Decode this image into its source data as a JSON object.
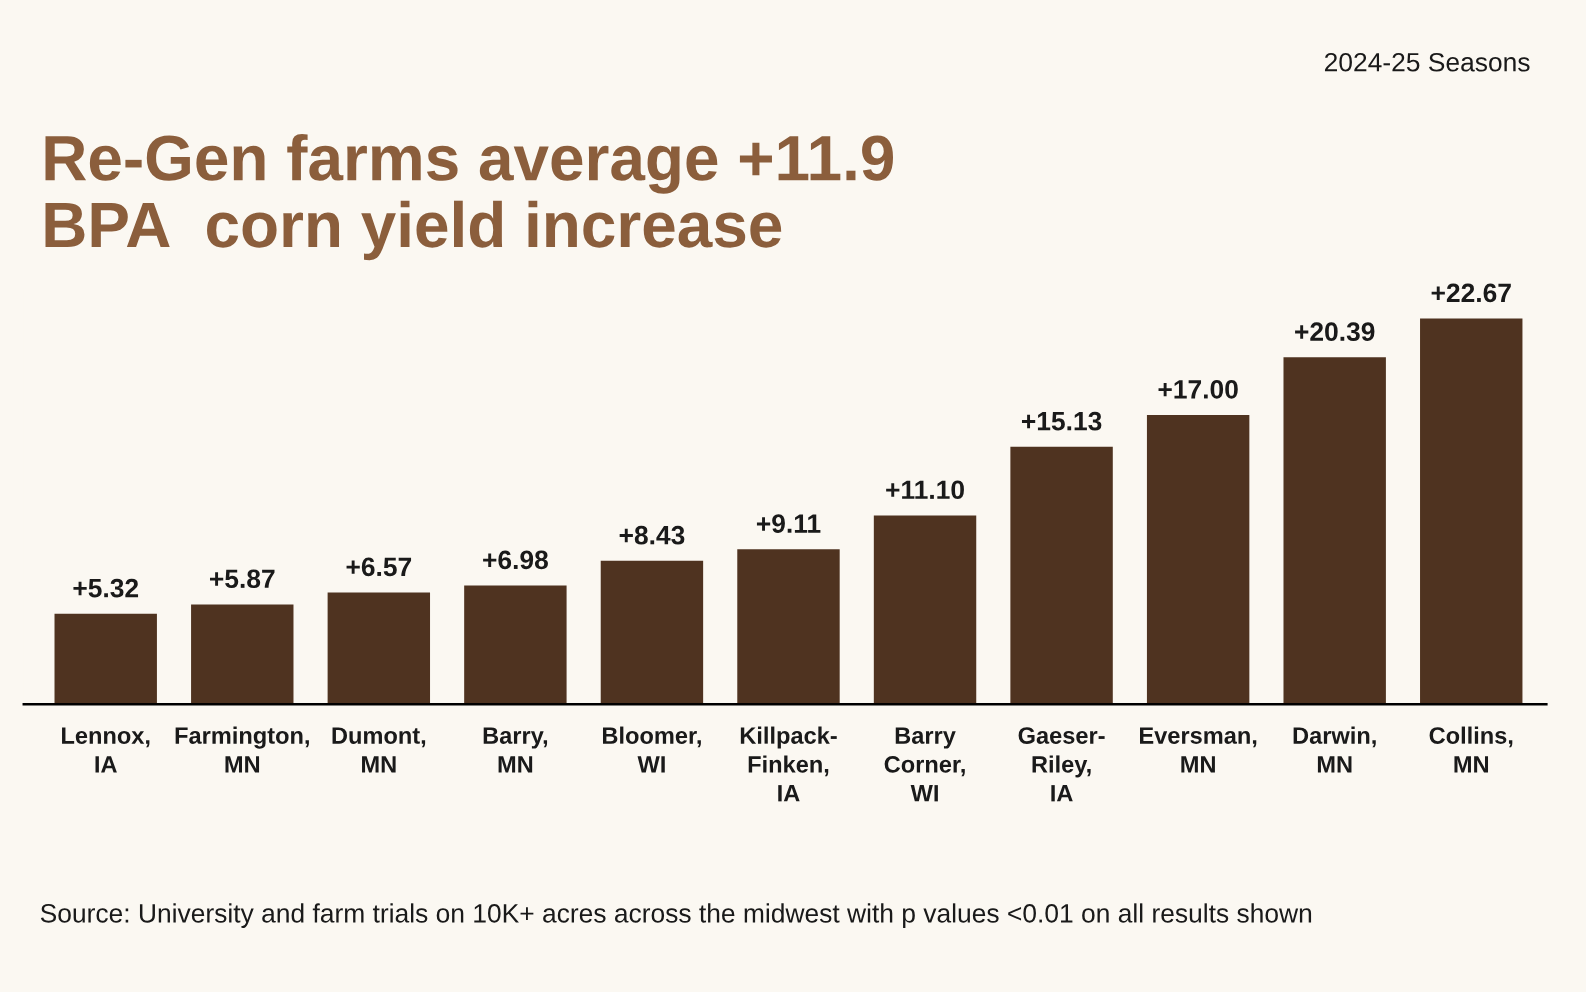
{
  "chart_data": {
    "type": "bar",
    "title": "Re-Gen farms average +11.9\nBPA  corn yield increase",
    "subtitle": "2024-25 Seasons",
    "categories": [
      "Lennox,\nIA",
      "Farmington,\nMN",
      "Dumont,\nMN",
      "Barry,\nMN",
      "Bloomer,\nWI",
      "Killpack-\nFinken,\nIA",
      "Barry\nCorner,\nWI",
      "Gaeser-\nRiley,\nIA",
      "Eversman,\nMN",
      "Darwin,\nMN",
      "Collins,\nMN"
    ],
    "values": [
      5.32,
      5.87,
      6.57,
      6.98,
      8.43,
      9.11,
      11.1,
      15.13,
      17.0,
      20.39,
      22.67
    ],
    "value_labels": [
      "+5.32",
      "+5.87",
      "+6.57",
      "+6.98",
      "+8.43",
      "+9.11",
      "+11.10",
      "+15.13",
      "+17.00",
      "+20.39",
      "+22.67"
    ],
    "color": "#4f3320",
    "grid": false,
    "legend": false,
    "annotations": [
      "Source: University and farm trials on 10K+ acres across the midwest with p values <0.01 on all results shown"
    ]
  }
}
